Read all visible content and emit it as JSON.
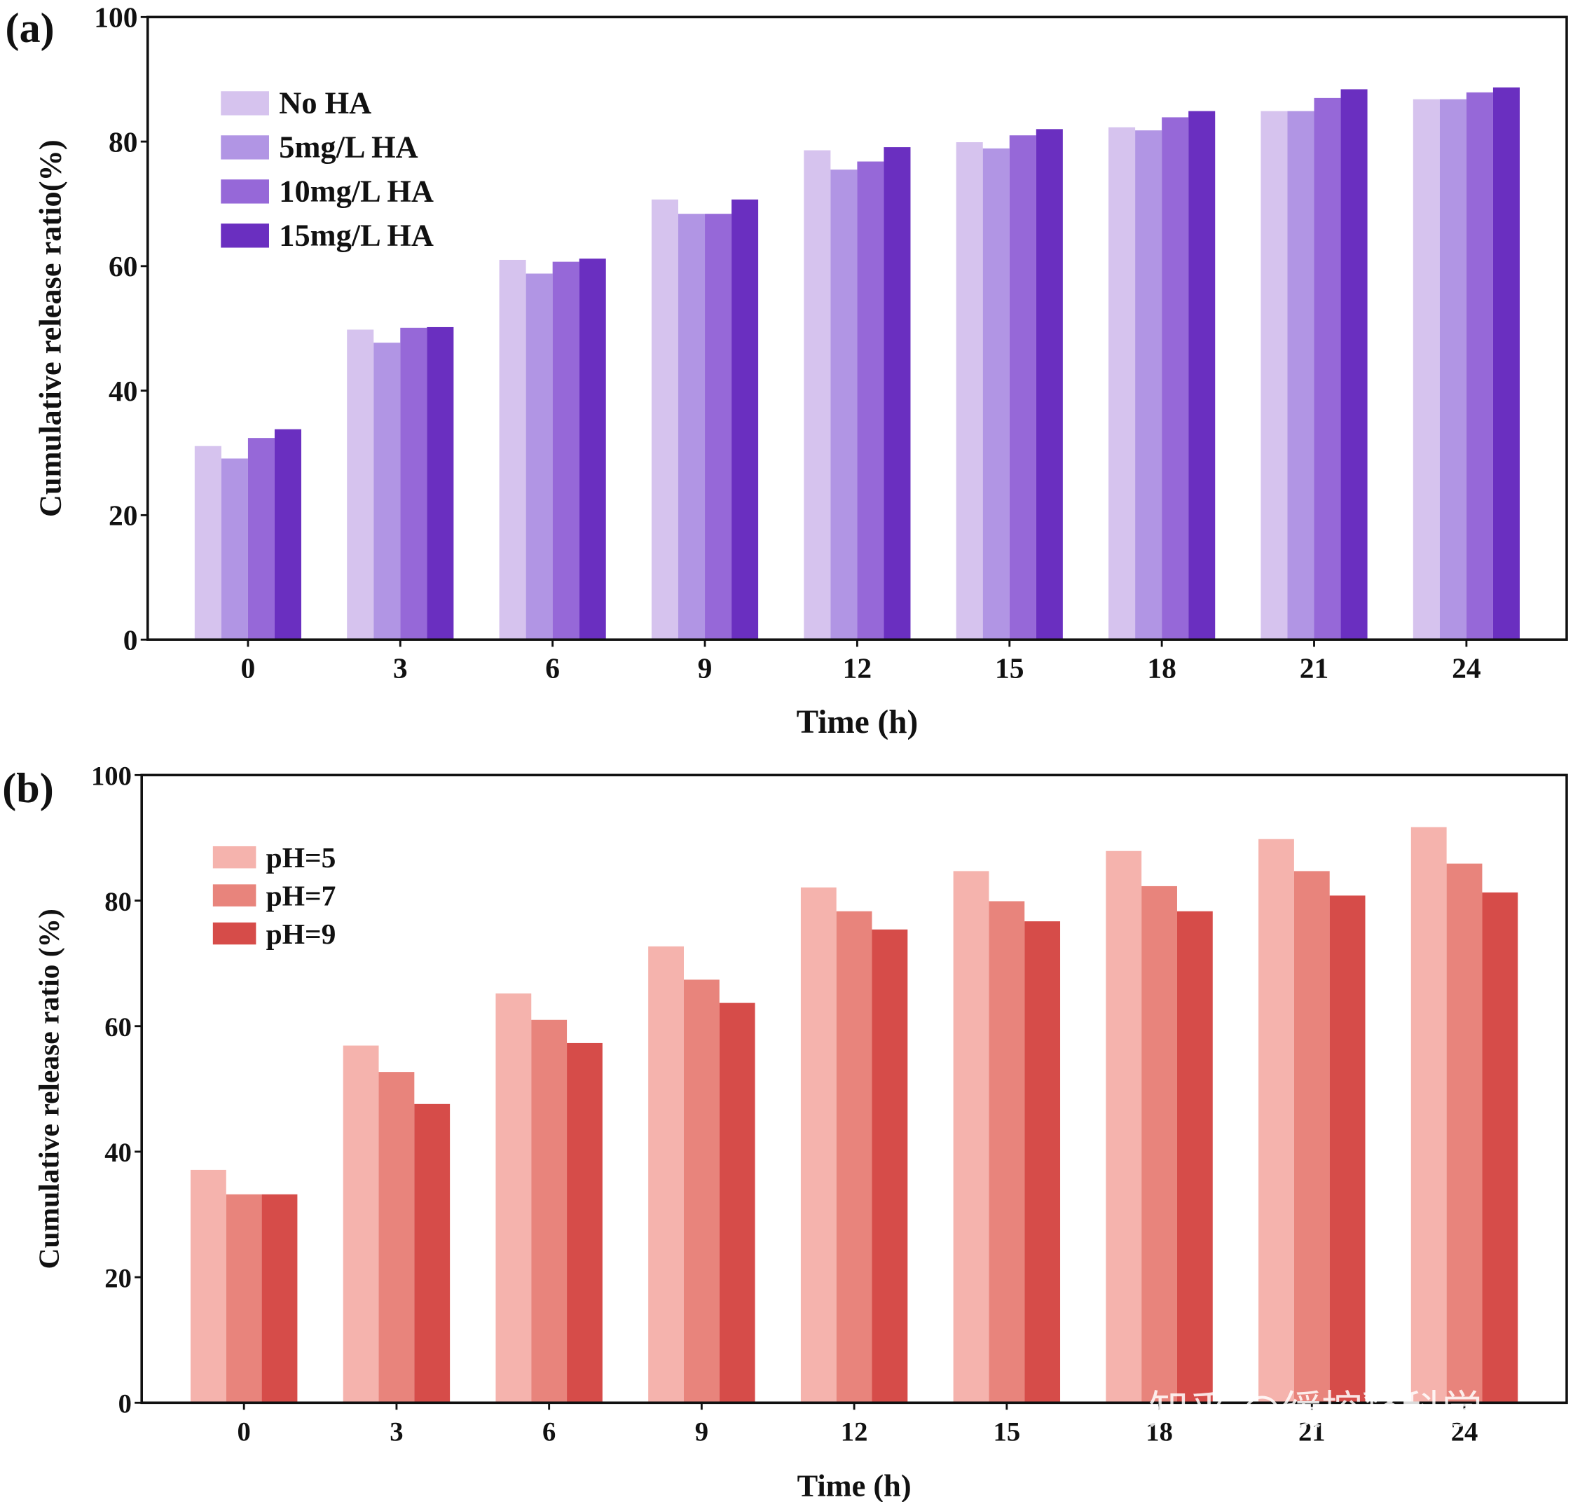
{
  "chart_data": [
    {
      "type": "bar",
      "label": "(a)",
      "xlabel": "Time (h)",
      "ylabel": "Cumulative release ratio(%)",
      "categories": [
        "0",
        "3",
        "6",
        "9",
        "12",
        "15",
        "18",
        "21",
        "24"
      ],
      "series": [
        {
          "name": "No HA",
          "color": "#d6c3ee",
          "values": [
            31.1,
            49.8,
            61,
            70.7,
            78.6,
            79.9,
            82.3,
            84.9,
            86.8
          ]
        },
        {
          "name": "5mg/L HA",
          "color": "#b195e4",
          "values": [
            29.1,
            47.7,
            58.8,
            68.4,
            75.5,
            78.9,
            81.8,
            84.9,
            86.8
          ]
        },
        {
          "name": "10mg/L HA",
          "color": "#9668d8",
          "values": [
            32.4,
            50.1,
            60.7,
            68.4,
            76.8,
            81,
            83.9,
            87,
            87.9
          ]
        },
        {
          "name": "15mg/L HA",
          "color": "#6a2fc0",
          "values": [
            33.8,
            50.2,
            61.2,
            70.7,
            79.1,
            82,
            84.9,
            88.4,
            88.7
          ]
        }
      ],
      "ylim": [
        0,
        100
      ],
      "yticks": [
        0,
        20,
        40,
        60,
        80,
        100
      ],
      "legend": "upper left"
    },
    {
      "type": "bar",
      "label": "(b)",
      "xlabel": "Time (h)",
      "ylabel": "Cumulative release ratio (%)",
      "categories": [
        "0",
        "3",
        "6",
        "9",
        "12",
        "15",
        "18",
        "21",
        "24"
      ],
      "series": [
        {
          "name": "pH=5",
          "color": "#f5b3ad",
          "values": [
            37.1,
            56.9,
            65.2,
            72.7,
            82.1,
            84.7,
            87.9,
            89.8,
            91.7
          ]
        },
        {
          "name": "pH=7",
          "color": "#e8847c",
          "values": [
            33.2,
            52.7,
            61,
            67.4,
            78.3,
            79.9,
            82.3,
            84.7,
            85.9
          ]
        },
        {
          "name": "pH=9",
          "color": "#d64c49",
          "values": [
            33.2,
            47.6,
            57.3,
            63.7,
            75.4,
            76.7,
            78.3,
            80.8,
            81.3
          ]
        }
      ],
      "ylim": [
        0,
        100
      ],
      "yticks": [
        0,
        20,
        40,
        60,
        80,
        100
      ],
      "legend": "upper left"
    }
  ],
  "watermark": "知乎 @缓控释科学"
}
